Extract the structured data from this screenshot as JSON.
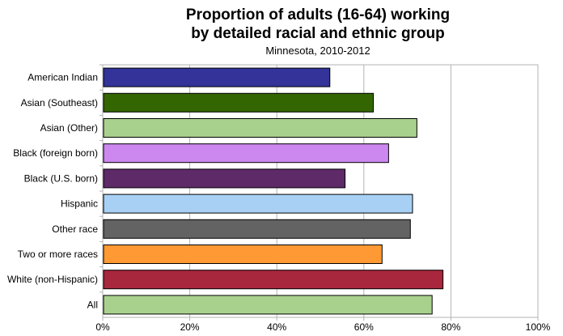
{
  "chart_data": {
    "type": "bar",
    "orientation": "horizontal",
    "title_line1": "Proportion of adults (16-64) working",
    "title_line2": "by detailed racial and ethnic group",
    "subtitle": "Minnesota, 2010-2012",
    "categories": [
      "American Indian",
      "Asian (Southeast)",
      "Asian (Other)",
      "Black (foreign born)",
      "Black (U.S. born)",
      "Hispanic",
      "Other race",
      "Two or more races",
      "White (non-Hispanic)",
      "All"
    ],
    "values": [
      52,
      62,
      72,
      65.5,
      55.5,
      71,
      70.5,
      64,
      78,
      75.5
    ],
    "colors": [
      "#333399",
      "#336600",
      "#a9d18e",
      "#cc88ee",
      "#5e2a68",
      "#a8d0f5",
      "#636363",
      "#ff9933",
      "#a8273c",
      "#a9d18e"
    ],
    "xlim": [
      0,
      100
    ],
    "xticks": [
      "0%",
      "20%",
      "40%",
      "60%",
      "80%",
      "100%"
    ],
    "grid": true
  }
}
